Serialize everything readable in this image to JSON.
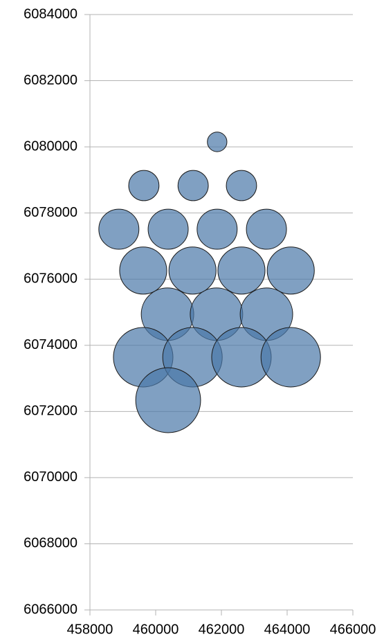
{
  "chart_data": {
    "type": "bubble",
    "x": [
      461870,
      459640,
      461140,
      462610,
      458880,
      460380,
      461870,
      463370,
      459620,
      461120,
      462610,
      464110,
      460360,
      461850,
      463370,
      459620,
      461120,
      462610,
      464110,
      460380
    ],
    "values": [
      6080150,
      6078830,
      6078830,
      6078830,
      6077510,
      6077510,
      6077510,
      6077510,
      6076260,
      6076260,
      6076260,
      6076260,
      6074940,
      6074940,
      6074940,
      6073640,
      6073640,
      6073640,
      6073640,
      6072340
    ],
    "sizes": [
      2,
      4.8,
      4.8,
      4.8,
      8.4,
      8.4,
      8.4,
      8.4,
      11.6,
      11.6,
      11.6,
      11.6,
      14.4,
      14.4,
      14.4,
      18.5,
      18.5,
      18.5,
      18.5,
      22
    ],
    "color": "#4a78a8",
    "xlim": [
      458000,
      466000
    ],
    "xticks": [
      458000,
      460000,
      462000,
      464000,
      466000
    ],
    "ylim": [
      6066000,
      6084000
    ],
    "yticks": [
      6066000,
      6068000,
      6070000,
      6072000,
      6074000,
      6076000,
      6078000,
      6080000,
      6082000,
      6084000
    ],
    "grid": true
  }
}
